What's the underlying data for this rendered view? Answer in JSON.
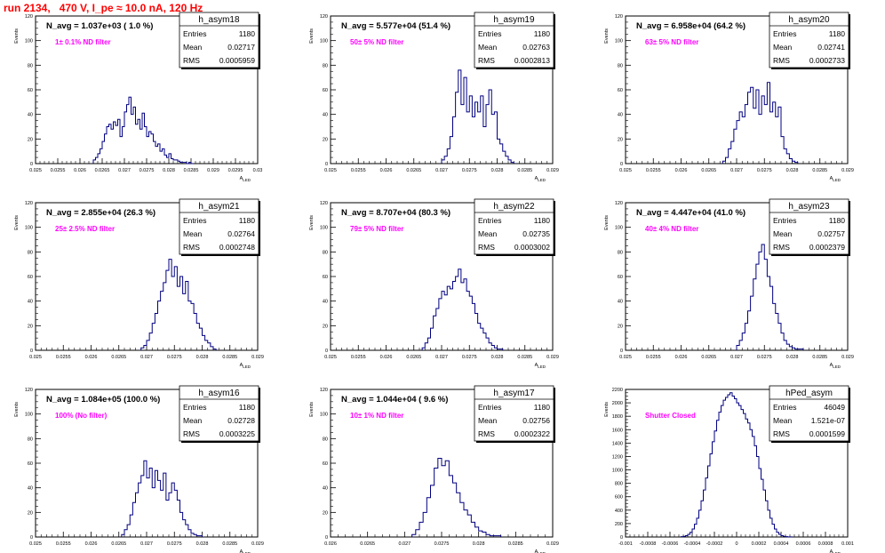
{
  "title": "run 2134,   470 V, I_pe ≈ 10.0 nA, 120 Hz",
  "colors": {
    "title": "#ff0000",
    "annotation": "#ff00ff",
    "histogram": "#000080"
  },
  "chart_data": [
    {
      "type": "histogram",
      "name": "h_asym18",
      "ylabel": "Events",
      "xlabel": "A_LED",
      "nlabel": "N_avg = 1.037e+03 ( 1.0 %)",
      "annotation": "1± 0.1% ND filter",
      "stats": [
        [
          "Entries",
          "1180"
        ],
        [
          "Mean",
          "0.02717"
        ],
        [
          "RMS",
          "0.0005959"
        ]
      ],
      "xlim": [
        0.025,
        0.03
      ],
      "ylim": [
        0,
        120
      ],
      "xticks": [
        0.025,
        0.0255,
        0.026,
        0.0265,
        0.027,
        0.0275,
        0.028,
        0.0285,
        0.029,
        0.0295,
        0.03
      ],
      "xticklabels": [
        "0.025",
        "0.0255",
        "0.026",
        "0.0265",
        "0.027",
        "0.0275",
        "0.028",
        "0.0285",
        "0.029",
        "0.0295",
        "0.03"
      ],
      "yticks": [
        0,
        20,
        40,
        60,
        80,
        100,
        120
      ],
      "yticklabels": [
        "0",
        "20",
        "40",
        "60",
        "80",
        "100",
        "120"
      ],
      "bin_edges": [
        0.0263,
        0.02635,
        0.0264,
        0.02645,
        0.0265,
        0.02655,
        0.0266,
        0.02665,
        0.0267,
        0.02675,
        0.0268,
        0.02685,
        0.0269,
        0.02695,
        0.027,
        0.02705,
        0.0271,
        0.02715,
        0.0272,
        0.02725,
        0.0273,
        0.02735,
        0.0274,
        0.02745,
        0.0275,
        0.02755,
        0.0276,
        0.02765,
        0.0277,
        0.02775,
        0.0278,
        0.02785,
        0.0279,
        0.02795,
        0.028,
        0.02805,
        0.0281,
        0.02815,
        0.0282,
        0.02825,
        0.0283,
        0.02835,
        0.0284,
        0.02845,
        0.0285,
        0.02855
      ],
      "counts": [
        3,
        5,
        8,
        12,
        18,
        24,
        30,
        32,
        28,
        34,
        31,
        36,
        22,
        30,
        42,
        48,
        54,
        40,
        46,
        32,
        36,
        28,
        41,
        30,
        22,
        26,
        24,
        18,
        14,
        16,
        10,
        12,
        7,
        5,
        8,
        4,
        3,
        3,
        2,
        1,
        1,
        1,
        0,
        1,
        0
      ]
    },
    {
      "type": "histogram",
      "name": "h_asym19",
      "ylabel": "Events",
      "xlabel": "A_LED",
      "nlabel": "N_avg = 5.577e+04 (51.4 %)",
      "annotation": "50± 5% ND filter",
      "stats": [
        [
          "Entries",
          "1180"
        ],
        [
          "Mean",
          "0.02763"
        ],
        [
          "RMS",
          "0.0002813"
        ]
      ],
      "xlim": [
        0.025,
        0.029
      ],
      "ylim": [
        0,
        120
      ],
      "xticks": [
        0.025,
        0.0255,
        0.026,
        0.0265,
        0.027,
        0.0275,
        0.028,
        0.0285,
        0.029
      ],
      "xticklabels": [
        "0.025",
        "0.0255",
        "0.026",
        "0.0265",
        "0.027",
        "0.0275",
        "0.028",
        "0.0285",
        "0.029"
      ],
      "yticks": [
        0,
        20,
        40,
        60,
        80,
        100,
        120
      ],
      "yticklabels": [
        "0",
        "20",
        "40",
        "60",
        "80",
        "100",
        "120"
      ],
      "bin_edges": [
        0.027,
        0.02705,
        0.0271,
        0.02715,
        0.0272,
        0.02725,
        0.0273,
        0.02735,
        0.0274,
        0.02745,
        0.0275,
        0.02755,
        0.0276,
        0.02765,
        0.0277,
        0.02775,
        0.0278,
        0.02785,
        0.0279,
        0.02795,
        0.028,
        0.02805,
        0.0281,
        0.02815,
        0.0282,
        0.02825,
        0.0283
      ],
      "counts": [
        3,
        6,
        12,
        22,
        38,
        58,
        76,
        48,
        70,
        42,
        55,
        38,
        50,
        42,
        55,
        30,
        48,
        60,
        40,
        42,
        20,
        16,
        10,
        6,
        3,
        1
      ]
    },
    {
      "type": "histogram",
      "name": "h_asym20",
      "ylabel": "Events",
      "xlabel": "A_LED",
      "nlabel": "N_avg = 6.958e+04 (64.2 %)",
      "annotation": "63± 5% ND filter",
      "stats": [
        [
          "Entries",
          "1180"
        ],
        [
          "Mean",
          "0.02741"
        ],
        [
          "RMS",
          "0.0002733"
        ]
      ],
      "xlim": [
        0.025,
        0.029
      ],
      "ylim": [
        0,
        120
      ],
      "xticks": [
        0.025,
        0.0255,
        0.026,
        0.0265,
        0.027,
        0.0275,
        0.028,
        0.0285,
        0.029
      ],
      "xticklabels": [
        "0.025",
        "0.0255",
        "0.026",
        "0.0265",
        "0.027",
        "0.0275",
        "0.028",
        "0.0285",
        "0.029"
      ],
      "yticks": [
        0,
        20,
        40,
        60,
        80,
        100,
        120
      ],
      "yticklabels": [
        "0",
        "20",
        "40",
        "60",
        "80",
        "100",
        "120"
      ],
      "bin_edges": [
        0.02675,
        0.0268,
        0.02685,
        0.0269,
        0.02695,
        0.027,
        0.02705,
        0.0271,
        0.02715,
        0.0272,
        0.02725,
        0.0273,
        0.02735,
        0.0274,
        0.02745,
        0.0275,
        0.02755,
        0.0276,
        0.02765,
        0.0277,
        0.02775,
        0.0278,
        0.02785,
        0.0279,
        0.02795,
        0.028,
        0.02805,
        0.0281
      ],
      "counts": [
        2,
        5,
        12,
        18,
        28,
        35,
        42,
        38,
        48,
        58,
        62,
        45,
        60,
        40,
        55,
        48,
        66,
        42,
        50,
        38,
        46,
        22,
        12,
        8,
        4,
        2,
        1
      ]
    },
    {
      "type": "histogram",
      "name": "h_asym21",
      "ylabel": "Events",
      "xlabel": "A_LED",
      "nlabel": "N_avg = 2.855e+04 (26.3 %)",
      "annotation": "25± 2.5% ND filter",
      "stats": [
        [
          "Entries",
          "1180"
        ],
        [
          "Mean",
          "0.02764"
        ],
        [
          "RMS",
          "0.0002748"
        ]
      ],
      "xlim": [
        0.025,
        0.029
      ],
      "ylim": [
        0,
        120
      ],
      "xticks": [
        0.025,
        0.0255,
        0.026,
        0.0265,
        0.027,
        0.0275,
        0.028,
        0.0285,
        0.029
      ],
      "xticklabels": [
        "0.025",
        "0.0255",
        "0.026",
        "0.0265",
        "0.027",
        "0.0275",
        "0.028",
        "0.0285",
        "0.029"
      ],
      "yticks": [
        0,
        20,
        40,
        60,
        80,
        100,
        120
      ],
      "yticklabels": [
        "0",
        "20",
        "40",
        "60",
        "80",
        "100",
        "120"
      ],
      "bin_edges": [
        0.0269,
        0.02695,
        0.027,
        0.02705,
        0.0271,
        0.02715,
        0.0272,
        0.02725,
        0.0273,
        0.02735,
        0.0274,
        0.02745,
        0.0275,
        0.02755,
        0.0276,
        0.02765,
        0.0277,
        0.02775,
        0.0278,
        0.02785,
        0.0279,
        0.02795,
        0.028,
        0.02805,
        0.0281,
        0.02815,
        0.0282,
        0.02825
      ],
      "counts": [
        2,
        4,
        8,
        14,
        22,
        30,
        40,
        48,
        55,
        65,
        74,
        60,
        68,
        52,
        60,
        46,
        56,
        40,
        38,
        30,
        22,
        18,
        12,
        8,
        6,
        3,
        1
      ]
    },
    {
      "type": "histogram",
      "name": "h_asym22",
      "ylabel": "Events",
      "xlabel": "A_LED",
      "nlabel": "N_avg = 8.707e+04 (80.3 %)",
      "annotation": "79± 5% ND filter",
      "stats": [
        [
          "Entries",
          "1180"
        ],
        [
          "Mean",
          "0.02735"
        ],
        [
          "RMS",
          "0.0003002"
        ]
      ],
      "xlim": [
        0.025,
        0.029
      ],
      "ylim": [
        0,
        120
      ],
      "xticks": [
        0.025,
        0.0255,
        0.026,
        0.0265,
        0.027,
        0.0275,
        0.028,
        0.0285,
        0.029
      ],
      "xticklabels": [
        "0.025",
        "0.0255",
        "0.026",
        "0.0265",
        "0.027",
        "0.0275",
        "0.028",
        "0.0285",
        "0.029"
      ],
      "yticks": [
        0,
        20,
        40,
        60,
        80,
        100,
        120
      ],
      "yticklabels": [
        "0",
        "20",
        "40",
        "60",
        "80",
        "100",
        "120"
      ],
      "bin_edges": [
        0.02665,
        0.0267,
        0.02675,
        0.0268,
        0.02685,
        0.0269,
        0.02695,
        0.027,
        0.02705,
        0.0271,
        0.02715,
        0.0272,
        0.02725,
        0.0273,
        0.02735,
        0.0274,
        0.02745,
        0.0275,
        0.02755,
        0.0276,
        0.02765,
        0.0277,
        0.02775,
        0.0278,
        0.02785,
        0.0279,
        0.02795,
        0.028,
        0.02805,
        0.0281
      ],
      "counts": [
        2,
        6,
        10,
        18,
        28,
        34,
        42,
        48,
        45,
        52,
        50,
        56,
        60,
        66,
        55,
        58,
        48,
        44,
        38,
        30,
        22,
        18,
        14,
        10,
        6,
        4,
        2,
        1,
        1
      ]
    },
    {
      "type": "histogram",
      "name": "h_asym23",
      "ylabel": "Events",
      "xlabel": "A_LED",
      "nlabel": "N_avg = 4.447e+04 (41.0 %)",
      "annotation": "40± 4% ND filter",
      "stats": [
        [
          "Entries",
          "1180"
        ],
        [
          "Mean",
          "0.02757"
        ],
        [
          "RMS",
          "0.0002379"
        ]
      ],
      "xlim": [
        0.025,
        0.029
      ],
      "ylim": [
        0,
        120
      ],
      "xticks": [
        0.025,
        0.0255,
        0.026,
        0.0265,
        0.027,
        0.0275,
        0.028,
        0.0285,
        0.029
      ],
      "xticklabels": [
        "0.025",
        "0.0255",
        "0.026",
        "0.0265",
        "0.027",
        "0.0275",
        "0.028",
        "0.0285",
        "0.029"
      ],
      "yticks": [
        0,
        20,
        40,
        60,
        80,
        100,
        120
      ],
      "yticklabels": [
        "0",
        "20",
        "40",
        "60",
        "80",
        "100",
        "120"
      ],
      "bin_edges": [
        0.027,
        0.02705,
        0.0271,
        0.02715,
        0.0272,
        0.02725,
        0.0273,
        0.02735,
        0.0274,
        0.02745,
        0.0275,
        0.02755,
        0.0276,
        0.02765,
        0.0277,
        0.02775,
        0.0278,
        0.02785,
        0.0279,
        0.02795,
        0.028,
        0.02805,
        0.0281,
        0.02815,
        0.0282
      ],
      "counts": [
        4,
        8,
        14,
        22,
        32,
        44,
        58,
        70,
        80,
        86,
        74,
        60,
        52,
        38,
        30,
        22,
        14,
        8,
        5,
        3,
        2,
        1,
        1,
        1
      ]
    },
    {
      "type": "histogram",
      "name": "h_asym16",
      "ylabel": "Events",
      "xlabel": "A_LED",
      "nlabel": "N_avg = 1.084e+05 (100.0 %)",
      "annotation": "100% (No filter)",
      "stats": [
        [
          "Entries",
          "1180"
        ],
        [
          "Mean",
          "0.02728"
        ],
        [
          "RMS",
          "0.0003225"
        ]
      ],
      "xlim": [
        0.025,
        0.029
      ],
      "ylim": [
        0,
        120
      ],
      "xticks": [
        0.025,
        0.0255,
        0.026,
        0.0265,
        0.027,
        0.0275,
        0.028,
        0.0285,
        0.029
      ],
      "xticklabels": [
        "0.025",
        "0.0255",
        "0.026",
        "0.0265",
        "0.027",
        "0.0275",
        "0.028",
        "0.0285",
        "0.029"
      ],
      "yticks": [
        0,
        20,
        40,
        60,
        80,
        100,
        120
      ],
      "yticklabels": [
        "0",
        "20",
        "40",
        "60",
        "80",
        "100",
        "120"
      ],
      "bin_edges": [
        0.02655,
        0.0266,
        0.02665,
        0.0267,
        0.02675,
        0.0268,
        0.02685,
        0.0269,
        0.02695,
        0.027,
        0.02705,
        0.0271,
        0.02715,
        0.0272,
        0.02725,
        0.0273,
        0.02735,
        0.0274,
        0.02745,
        0.0275,
        0.02755,
        0.0276,
        0.02765,
        0.0277,
        0.02775,
        0.0278,
        0.02785,
        0.0279,
        0.02795,
        0.028
      ],
      "counts": [
        2,
        6,
        10,
        18,
        28,
        36,
        44,
        50,
        62,
        48,
        56,
        40,
        54,
        46,
        38,
        52,
        30,
        36,
        44,
        38,
        30,
        20,
        14,
        10,
        6,
        3,
        2,
        1,
        1
      ]
    },
    {
      "type": "histogram",
      "name": "h_asym17",
      "ylabel": "Events",
      "xlabel": "A_LED",
      "nlabel": "N_avg = 1.044e+04 ( 9.6 %)",
      "annotation": "10± 1% ND filter",
      "stats": [
        [
          "Entries",
          "1180"
        ],
        [
          "Mean",
          "0.02756"
        ],
        [
          "RMS",
          "0.0002322"
        ]
      ],
      "xlim": [
        0.026,
        0.029
      ],
      "ylim": [
        0,
        120
      ],
      "xticks": [
        0.026,
        0.0265,
        0.027,
        0.0275,
        0.028,
        0.0285,
        0.029
      ],
      "xticklabels": [
        "0.026",
        "0.0265",
        "0.027",
        "0.0275",
        "0.028",
        "0.0285",
        "0.029"
      ],
      "yticks": [
        0,
        20,
        40,
        60,
        80,
        100,
        120
      ],
      "yticklabels": [
        "0",
        "20",
        "40",
        "60",
        "80",
        "100",
        "120"
      ],
      "bin_edges": [
        0.0271,
        0.02715,
        0.0272,
        0.02725,
        0.0273,
        0.02735,
        0.0274,
        0.02745,
        0.0275,
        0.02755,
        0.0276,
        0.02765,
        0.0277,
        0.02775,
        0.0278,
        0.02785,
        0.0279,
        0.02795,
        0.028,
        0.02805,
        0.0281,
        0.02815,
        0.0282,
        0.02825,
        0.0283
      ],
      "counts": [
        2,
        6,
        12,
        20,
        32,
        42,
        56,
        64,
        58,
        62,
        50,
        44,
        36,
        28,
        22,
        18,
        12,
        8,
        5,
        4,
        2,
        1,
        1,
        1
      ]
    },
    {
      "type": "histogram",
      "name": "hPed_asym",
      "ylabel": "Events",
      "xlabel": "A_LED",
      "nlabel": "",
      "annotation": "Shutter Closed",
      "stats": [
        [
          "Entries",
          "46049"
        ],
        [
          "Mean",
          "1.521e-07"
        ],
        [
          "RMS",
          "0.0001599"
        ]
      ],
      "xlim": [
        -0.001,
        0.001
      ],
      "ylim": [
        0,
        2200
      ],
      "xticks": [
        -0.001,
        -0.0008,
        -0.0006,
        -0.0004,
        -0.0002,
        0,
        0.0002,
        0.0004,
        0.0006,
        0.0008,
        0.001
      ],
      "xticklabels": [
        "-0.001",
        "-0.0008",
        "-0.0006",
        "-0.0004",
        "-0.0002",
        "0",
        "0.0002",
        "0.0004",
        "0.0006",
        "0.0008",
        "0.001"
      ],
      "yticks": [
        0,
        200,
        400,
        600,
        800,
        1000,
        1200,
        1400,
        1600,
        1800,
        2000,
        2200
      ],
      "yticklabels": [
        "0",
        "200",
        "400",
        "600",
        "800",
        "1000",
        "1200",
        "1400",
        "1600",
        "1800",
        "2000",
        "2200"
      ],
      "bin_edges": [
        -0.0005,
        -0.00048,
        -0.00046,
        -0.00044,
        -0.00042,
        -0.0004,
        -0.00038,
        -0.00036,
        -0.00034,
        -0.00032,
        -0.0003,
        -0.00028,
        -0.00026,
        -0.00024,
        -0.00022,
        -0.0002,
        -0.00018,
        -0.00016,
        -0.00014,
        -0.00012,
        -0.0001,
        -8e-05,
        -6e-05,
        -4e-05,
        -2e-05,
        0,
        2e-05,
        4e-05,
        6e-05,
        8e-05,
        0.0001,
        0.00012,
        0.00014,
        0.00016,
        0.00018,
        0.0002,
        0.00022,
        0.00024,
        0.00026,
        0.00028,
        0.0003,
        0.00032,
        0.00034,
        0.00036,
        0.00038,
        0.0004,
        0.00042,
        0.00044,
        0.00046,
        0.00048,
        0.0005
      ],
      "counts": [
        5,
        10,
        20,
        40,
        70,
        120,
        190,
        280,
        400,
        540,
        700,
        880,
        1060,
        1240,
        1420,
        1580,
        1740,
        1860,
        1960,
        2040,
        2080,
        2120,
        2150,
        2100,
        2060,
        2000,
        1960,
        1900,
        1840,
        1760,
        1700,
        1600,
        1500,
        1360,
        1200,
        1020,
        860,
        700,
        540,
        400,
        280,
        190,
        120,
        70,
        40,
        20,
        10,
        5,
        2,
        1
      ]
    }
  ]
}
